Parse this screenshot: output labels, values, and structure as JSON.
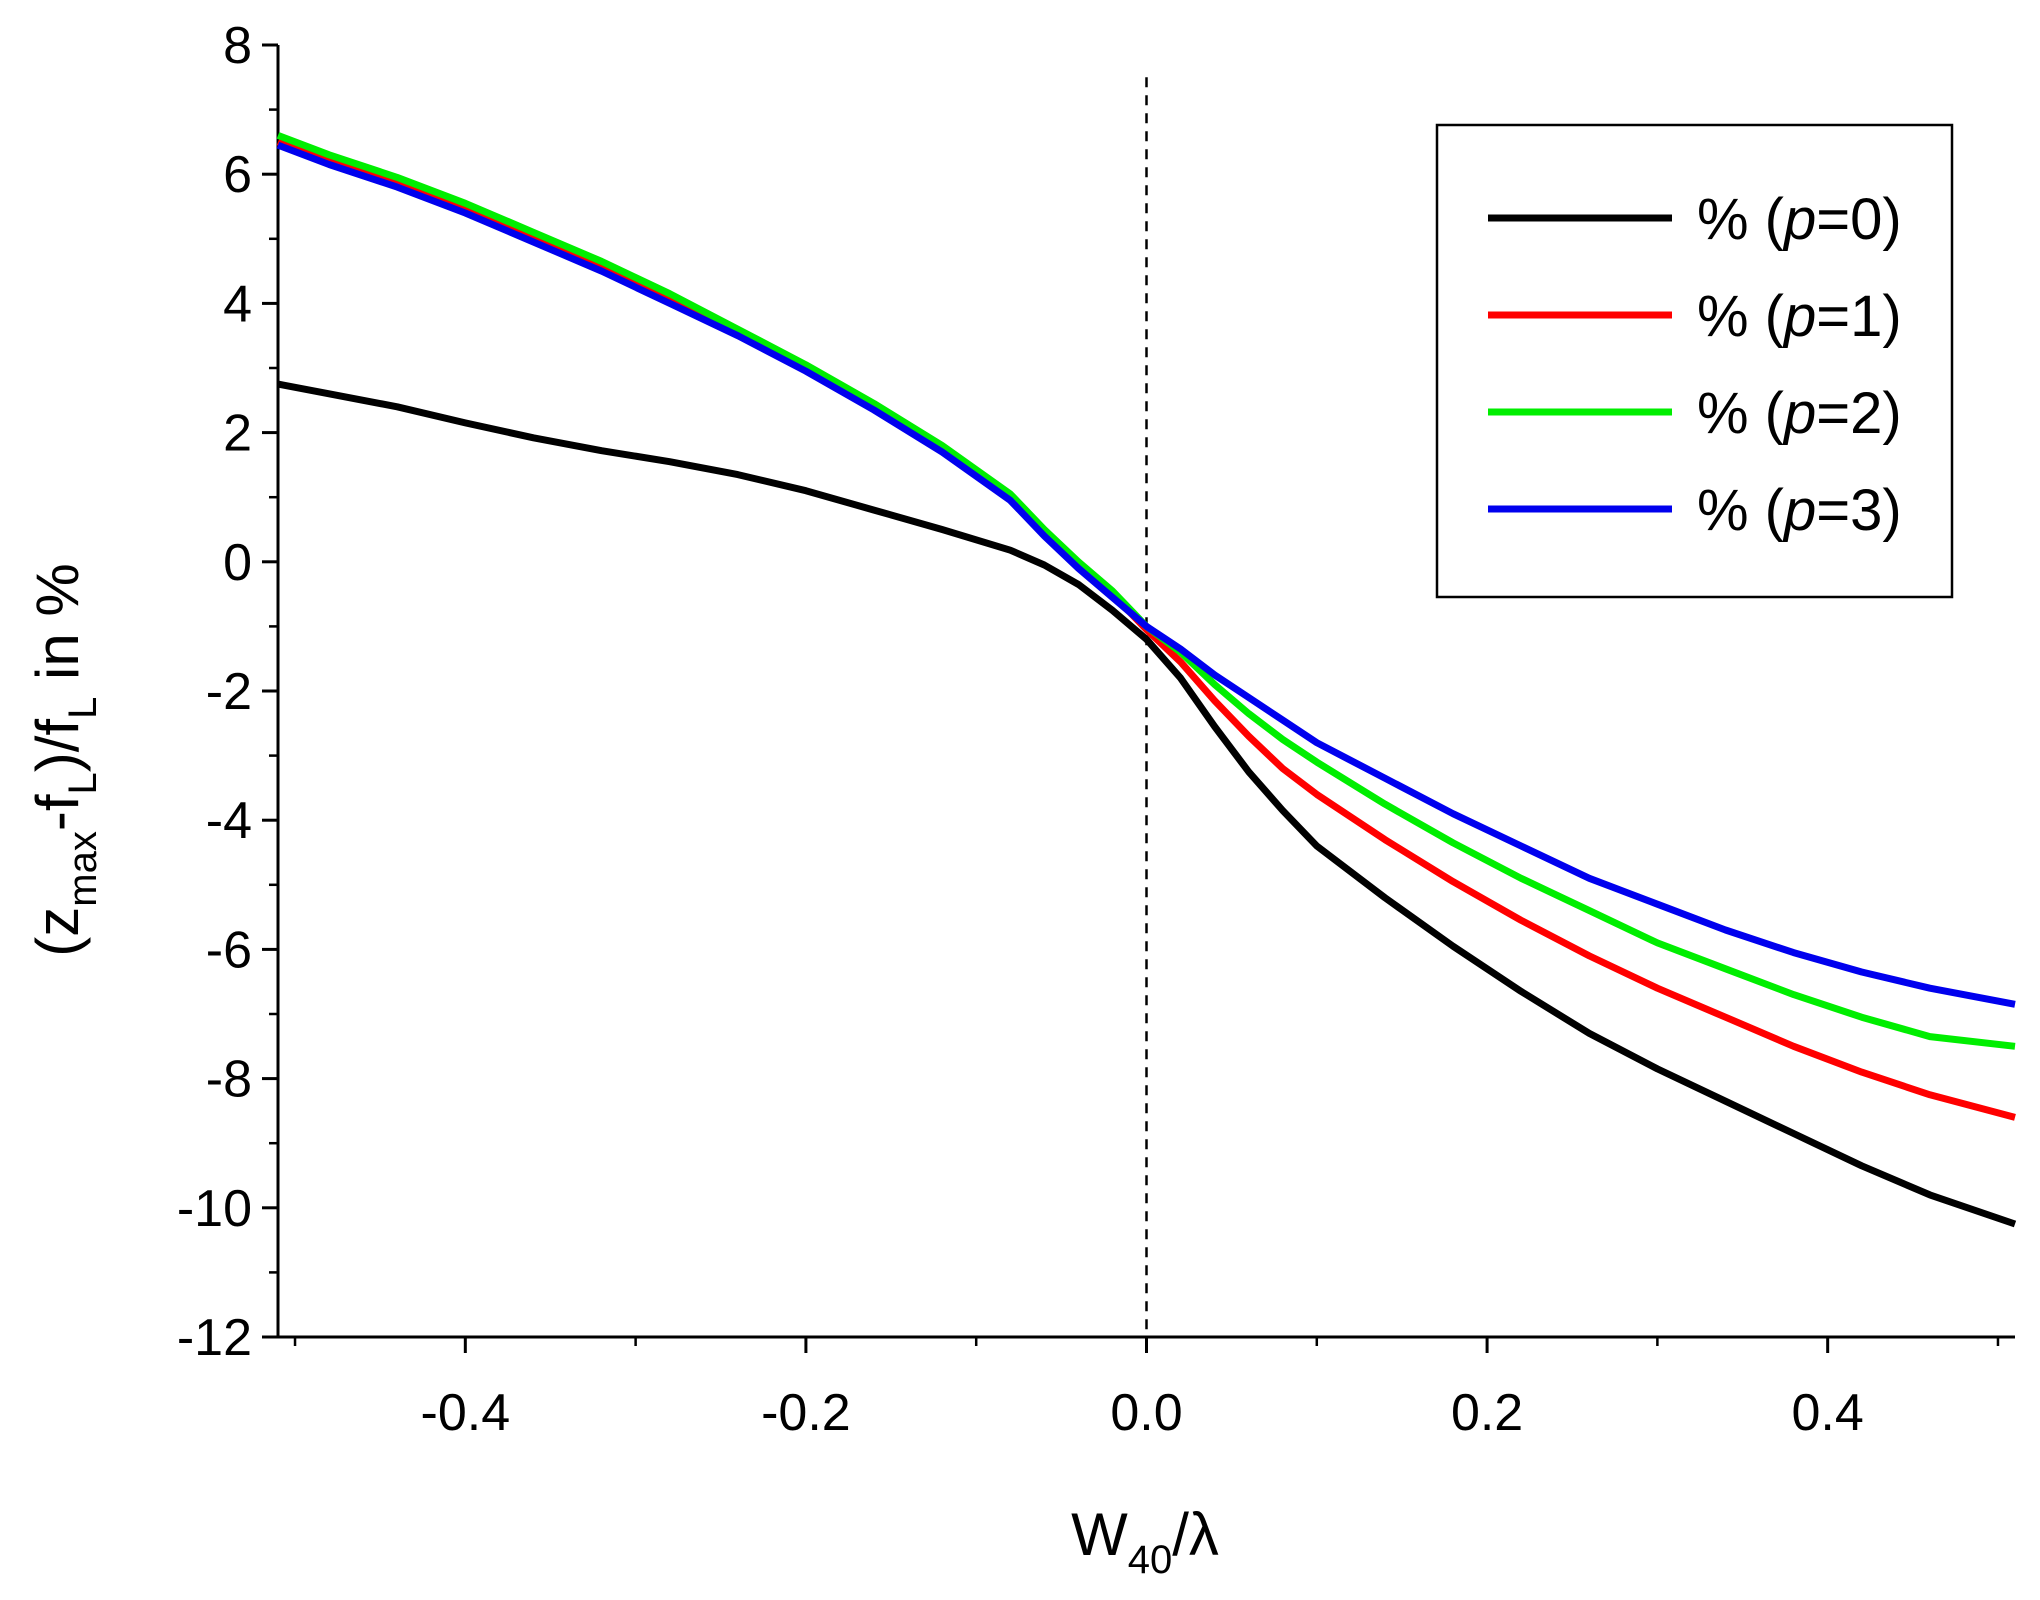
{
  "chart_data": {
    "type": "line",
    "title": "",
    "xlabel": {
      "main": "W",
      "sub": "40",
      "suffix": "/λ"
    },
    "ylabel": {
      "open": "(z",
      "sub1": "max",
      "mid": "-f",
      "sub2": "L",
      "mid2": ")/f",
      "sub3": "L",
      "tail": " in %"
    },
    "xlim": [
      -0.51,
      0.51
    ],
    "ylim": [
      -12,
      8
    ],
    "xticks": [
      -0.4,
      -0.2,
      0.0,
      0.2,
      0.4
    ],
    "xtick_labels": [
      "-0.4",
      "-0.2",
      "0.0",
      "0.2",
      "0.4"
    ],
    "yticks": [
      -12,
      -10,
      -8,
      -6,
      -4,
      -2,
      0,
      2,
      4,
      6,
      8
    ],
    "ytick_labels": [
      "-12",
      "-10",
      "-8",
      "-6",
      "-4",
      "-2",
      "0",
      "2",
      "4",
      "6",
      "8"
    ],
    "reference_line": {
      "x": 0.0,
      "style": "dashed"
    },
    "legend_position": "top-right",
    "x": [
      -0.51,
      -0.48,
      -0.44,
      -0.4,
      -0.36,
      -0.32,
      -0.28,
      -0.24,
      -0.2,
      -0.16,
      -0.12,
      -0.08,
      -0.06,
      -0.04,
      -0.02,
      0.0,
      0.02,
      0.04,
      0.06,
      0.08,
      0.1,
      0.14,
      0.18,
      0.22,
      0.26,
      0.3,
      0.34,
      0.38,
      0.42,
      0.46,
      0.51
    ],
    "series": [
      {
        "name": "p=0",
        "legend_prefix": "% (",
        "legend_var": "p",
        "legend_suffix": "=0)",
        "color": "#000000",
        "values": [
          2.75,
          2.6,
          2.4,
          2.15,
          1.92,
          1.72,
          1.55,
          1.35,
          1.1,
          0.8,
          0.5,
          0.18,
          -0.05,
          -0.35,
          -0.75,
          -1.2,
          -1.8,
          -2.55,
          -3.25,
          -3.85,
          -4.4,
          -5.2,
          -5.95,
          -6.65,
          -7.3,
          -7.85,
          -8.35,
          -8.85,
          -9.35,
          -9.8,
          -10.25
        ]
      },
      {
        "name": "p=1",
        "legend_prefix": "% (",
        "legend_var": "p",
        "legend_suffix": "=1)",
        "color": "#ff0000",
        "values": [
          6.5,
          6.2,
          5.85,
          5.45,
          5.0,
          4.55,
          4.05,
          3.55,
          3.0,
          2.4,
          1.75,
          1.0,
          0.45,
          -0.05,
          -0.5,
          -1.05,
          -1.55,
          -2.15,
          -2.7,
          -3.2,
          -3.6,
          -4.3,
          -4.95,
          -5.55,
          -6.1,
          -6.6,
          -7.05,
          -7.5,
          -7.9,
          -8.25,
          -8.6
        ]
      },
      {
        "name": "p=2",
        "legend_prefix": "% (",
        "legend_var": "p",
        "legend_suffix": "=2)",
        "color": "#00ee00",
        "values": [
          6.6,
          6.3,
          5.95,
          5.55,
          5.1,
          4.65,
          4.15,
          3.6,
          3.05,
          2.45,
          1.8,
          1.05,
          0.5,
          0.0,
          -0.45,
          -1.0,
          -1.4,
          -1.9,
          -2.35,
          -2.75,
          -3.1,
          -3.75,
          -4.35,
          -4.9,
          -5.4,
          -5.9,
          -6.3,
          -6.7,
          -7.05,
          -7.35,
          -7.5
        ]
      },
      {
        "name": "p=3",
        "legend_prefix": "% (",
        "legend_var": "p",
        "legend_suffix": "=3)",
        "color": "#0000ee",
        "values": [
          6.45,
          6.15,
          5.8,
          5.4,
          4.95,
          4.5,
          4.0,
          3.5,
          2.95,
          2.35,
          1.7,
          0.95,
          0.4,
          -0.1,
          -0.55,
          -1.0,
          -1.35,
          -1.75,
          -2.1,
          -2.45,
          -2.8,
          -3.35,
          -3.9,
          -4.4,
          -4.9,
          -5.3,
          -5.7,
          -6.05,
          -6.35,
          -6.6,
          -6.85
        ]
      }
    ]
  }
}
